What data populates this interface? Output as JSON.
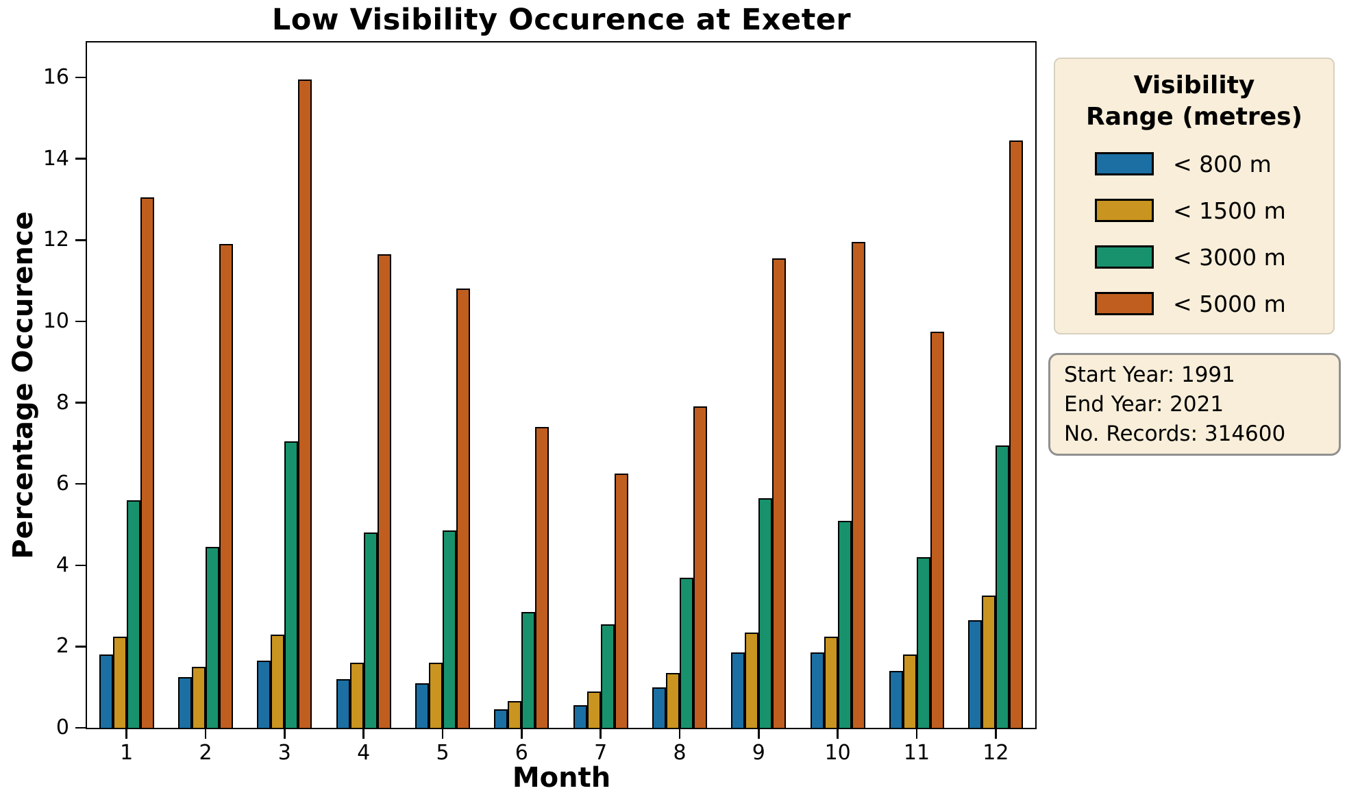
{
  "page": {
    "background": "#ffffff"
  },
  "chart_data": {
    "type": "bar",
    "title": "Low Visibility Occurence at Exeter",
    "xlabel": "Month",
    "ylabel": "Percentage Occurence",
    "categories": [
      "1",
      "2",
      "3",
      "4",
      "5",
      "6",
      "7",
      "8",
      "9",
      "10",
      "11",
      "12"
    ],
    "y_ticks": [
      "0",
      "2",
      "4",
      "6",
      "8",
      "10",
      "12",
      "14",
      "16"
    ],
    "ylim": [
      0,
      16.86
    ],
    "grid": false,
    "legend_position": "right-outside",
    "bar_edge_color": "#000000",
    "series": [
      {
        "name": "< 800 m",
        "key": "lt800",
        "color": "#1b6fa3",
        "values": [
          1.8,
          1.25,
          1.65,
          1.2,
          1.1,
          0.45,
          0.55,
          1.0,
          1.85,
          1.85,
          1.4,
          2.65
        ]
      },
      {
        "name": "< 1500 m",
        "key": "lt1500",
        "color": "#c9941f",
        "values": [
          2.25,
          1.5,
          2.3,
          1.6,
          1.6,
          0.65,
          0.9,
          1.35,
          2.35,
          2.25,
          1.8,
          3.25
        ]
      },
      {
        "name": "< 3000 m",
        "key": "lt3000",
        "color": "#17926c",
        "values": [
          5.6,
          4.45,
          7.05,
          4.8,
          4.85,
          2.85,
          2.55,
          3.7,
          5.65,
          5.1,
          4.2,
          6.95
        ]
      },
      {
        "name": "< 5000 m",
        "key": "lt5000",
        "color": "#c05e1f",
        "values": [
          13.05,
          11.9,
          15.95,
          11.65,
          10.8,
          7.4,
          6.25,
          7.9,
          11.55,
          11.95,
          9.75,
          14.45
        ]
      }
    ]
  },
  "legend": {
    "title_lines": [
      "Visibility",
      "Range (metres)"
    ],
    "entries": [
      {
        "label": "< 800 m",
        "color": "#1b6fa3"
      },
      {
        "label": "< 1500 m",
        "color": "#c9941f"
      },
      {
        "label": "< 3000 m",
        "color": "#17926c"
      },
      {
        "label": "< 5000 m",
        "color": "#c05e1f"
      }
    ]
  },
  "info_box": {
    "lines": [
      "Start Year: 1991",
      "End Year: 2021",
      "No. Records: 314600"
    ]
  }
}
